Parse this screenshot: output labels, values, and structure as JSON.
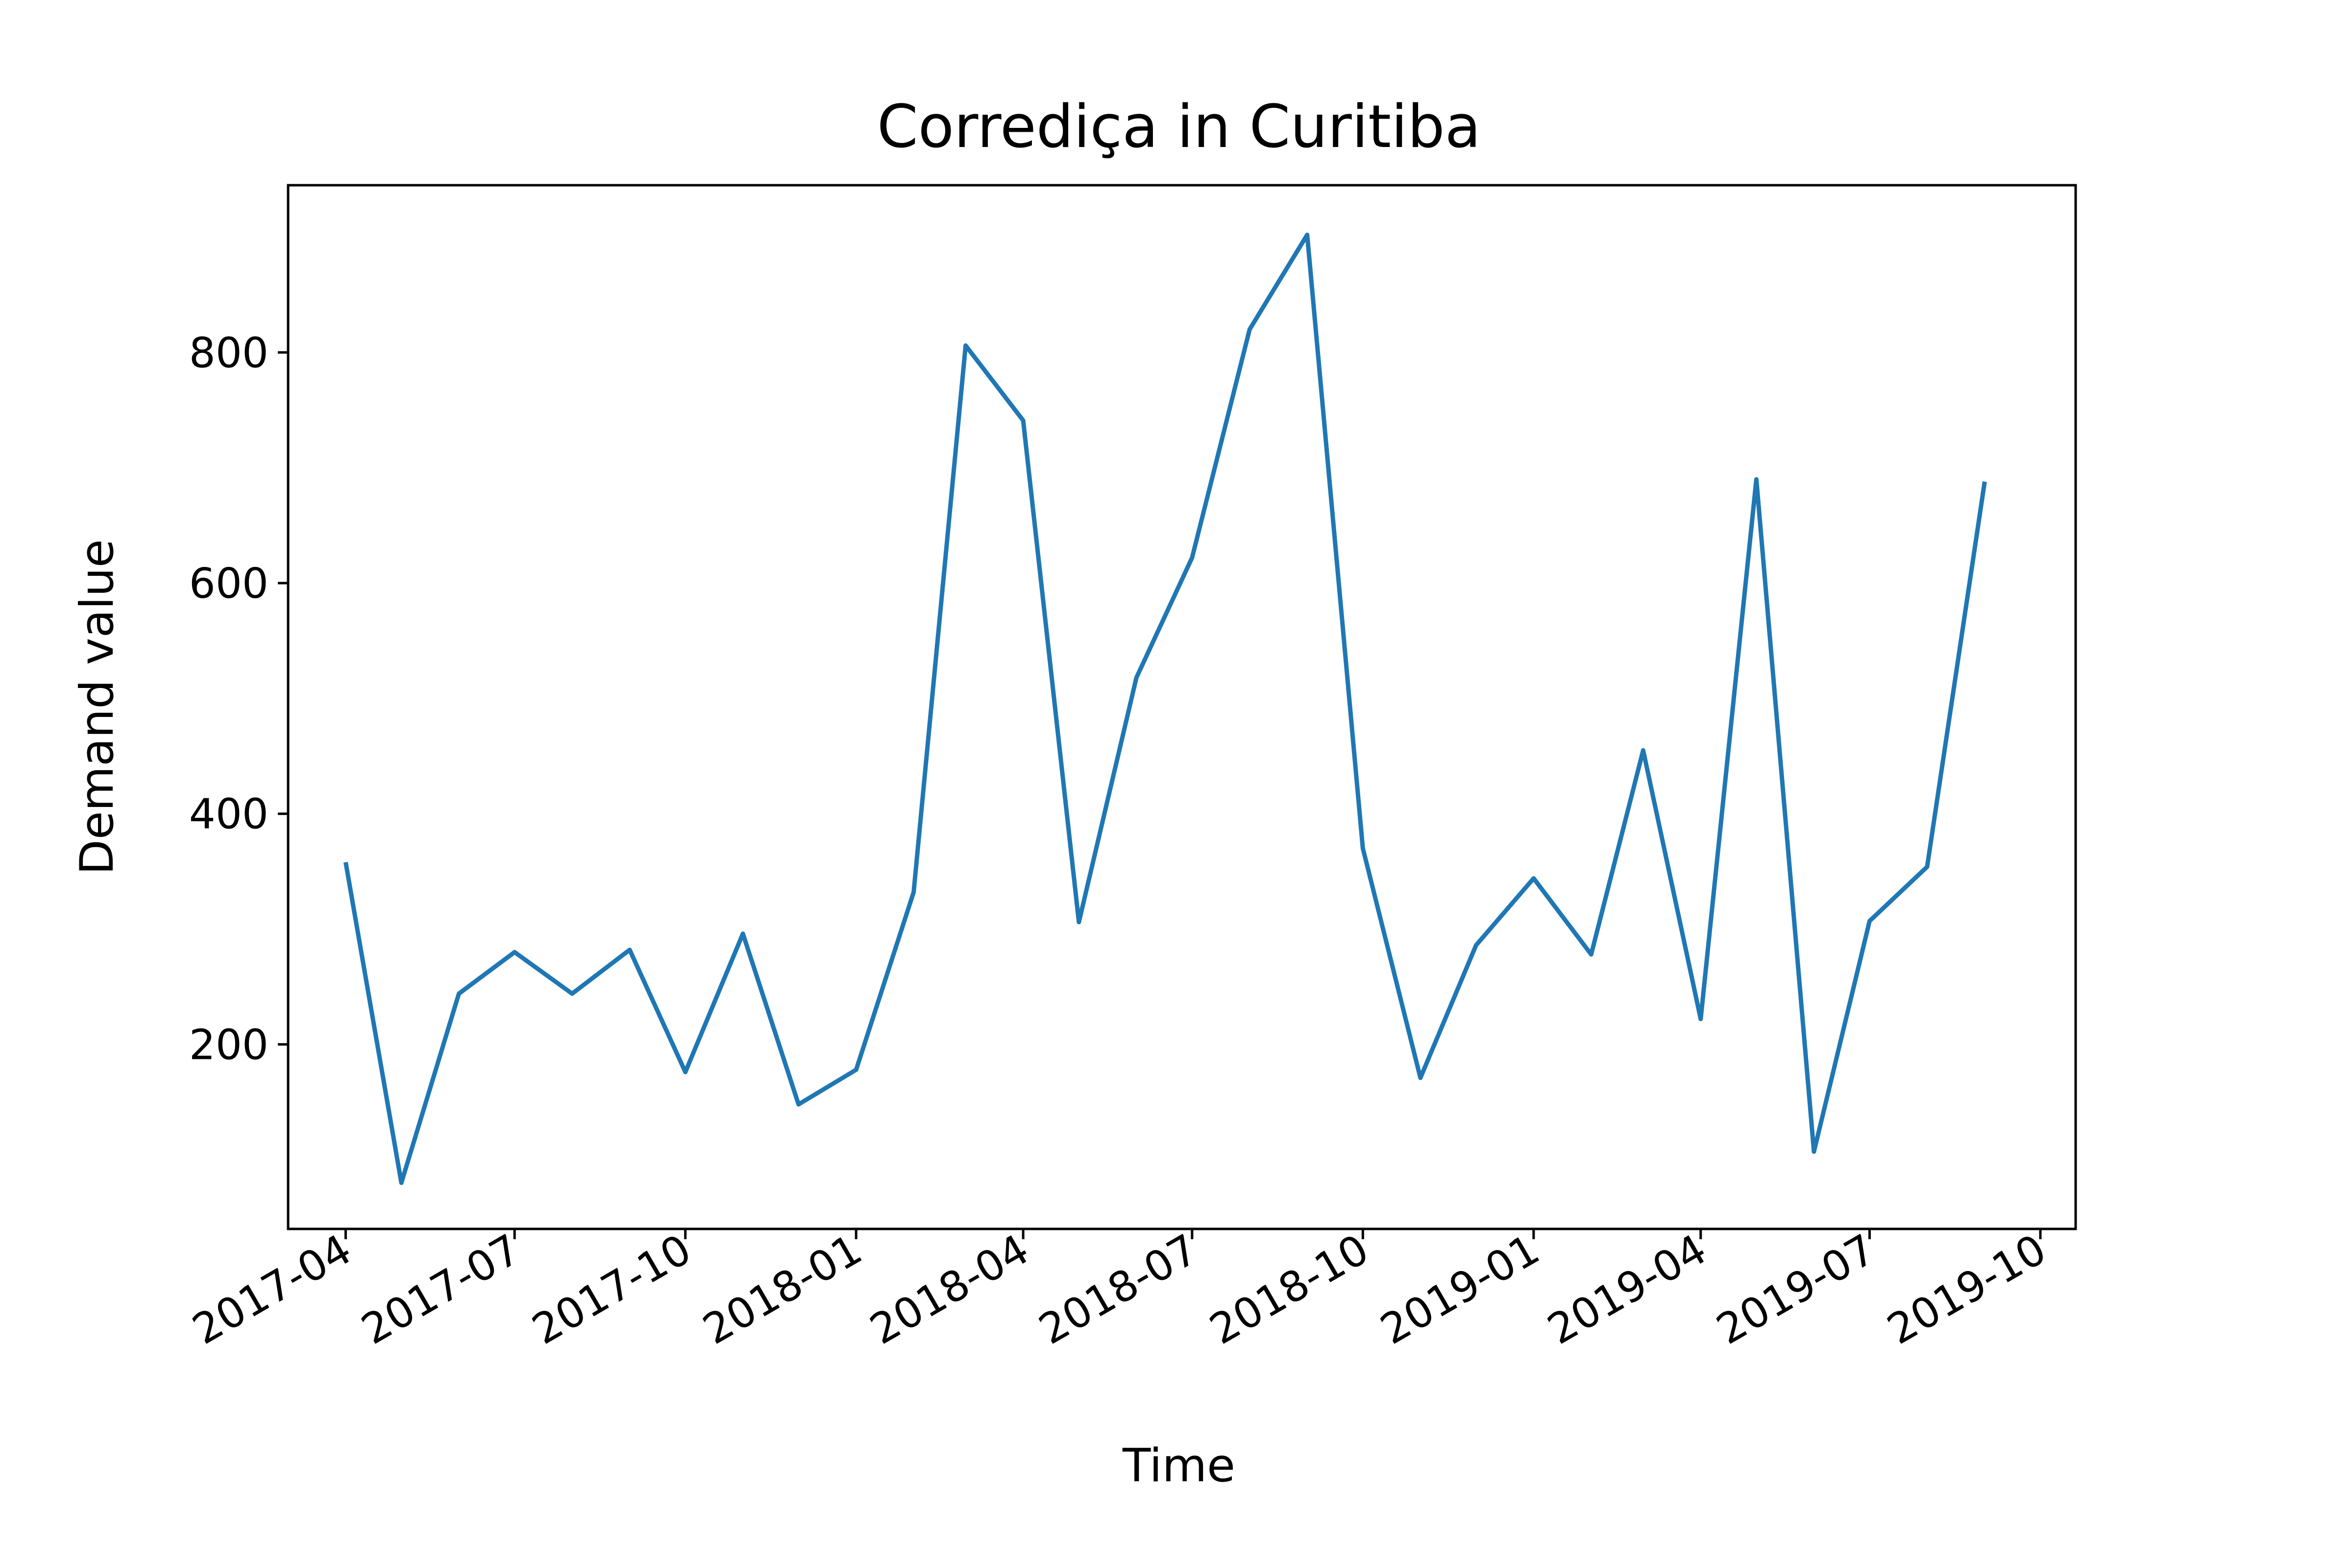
{
  "chart_data": {
    "type": "line",
    "title": "Corrediça in Curitiba",
    "xlabel": "Time",
    "ylabel": "Demand value",
    "x_type": "date",
    "xlim": [
      "2017-03-01",
      "2019-10-20"
    ],
    "ylim": [
      40,
      945
    ],
    "x_ticks": [
      "2017-04",
      "2017-07",
      "2017-10",
      "2018-01",
      "2018-04",
      "2018-07",
      "2018-10",
      "2019-01",
      "2019-04",
      "2019-07",
      "2019-10"
    ],
    "y_ticks": [
      200,
      400,
      600,
      800
    ],
    "grid": false,
    "legend": "none",
    "series": [
      {
        "color": "#1f77b4",
        "x": [
          "2017-04-01",
          "2017-05-01",
          "2017-06-01",
          "2017-07-01",
          "2017-08-01",
          "2017-09-01",
          "2017-10-01",
          "2017-11-01",
          "2017-12-01",
          "2018-01-01",
          "2018-02-01",
          "2018-03-01",
          "2018-04-01",
          "2018-05-01",
          "2018-06-01",
          "2018-07-01",
          "2018-08-01",
          "2018-09-01",
          "2018-10-01",
          "2018-11-01",
          "2018-12-01",
          "2019-01-01",
          "2019-02-01",
          "2019-03-01",
          "2019-04-01",
          "2019-05-01",
          "2019-06-01",
          "2019-07-01",
          "2019-08-01",
          "2019-09-01"
        ],
        "values": [
          358,
          80,
          244,
          280,
          244,
          282,
          176,
          296,
          148,
          178,
          332,
          806,
          741,
          306,
          518,
          622,
          820,
          902,
          370,
          171,
          286,
          344,
          278,
          455,
          222,
          690,
          107,
          307,
          354,
          688
        ]
      }
    ]
  }
}
